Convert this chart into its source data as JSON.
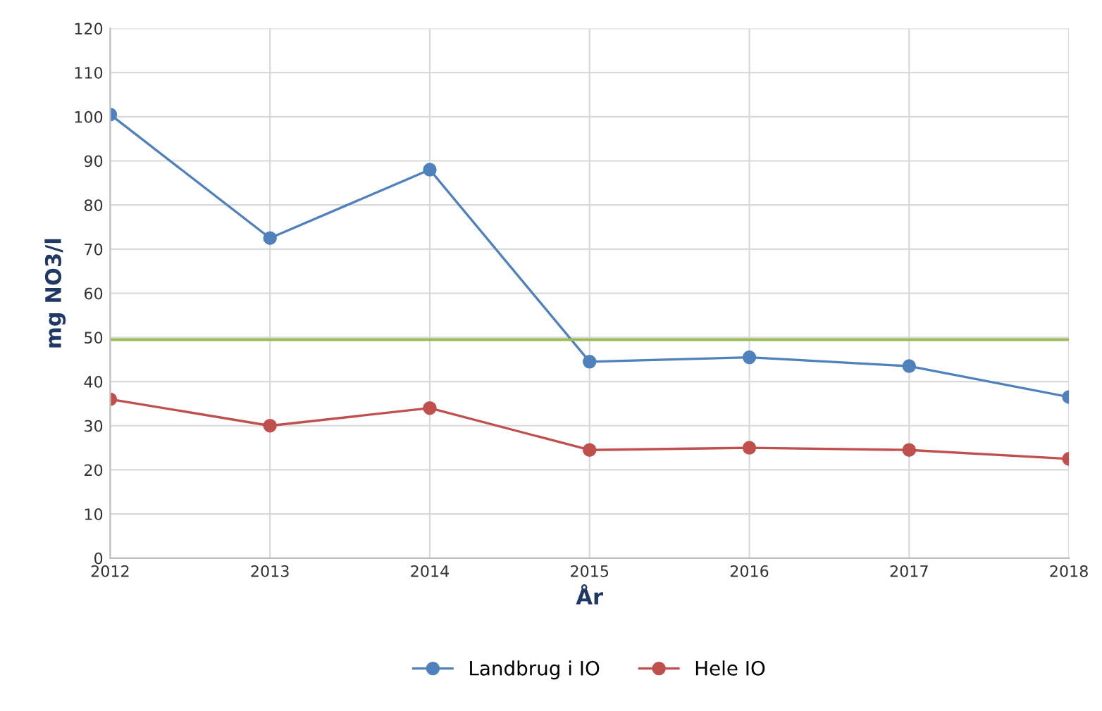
{
  "chart_data": {
    "type": "line",
    "xlabel": "År",
    "ylabel": "mg NO3/l",
    "x": [
      2012,
      2013,
      2014,
      2015,
      2016,
      2017,
      2018
    ],
    "series": [
      {
        "name": "Landbrug i IO",
        "color": "#4f81bd",
        "values": [
          100.5,
          72.5,
          88,
          44.5,
          45.5,
          43.5,
          36.5
        ]
      },
      {
        "name": "Hele IO",
        "color": "#c0504d",
        "values": [
          36,
          30,
          34,
          24.5,
          25,
          24.5,
          22.5
        ]
      }
    ],
    "ref_lines": [
      {
        "axis": "y",
        "value": 49.5,
        "color": "#9bbb59"
      }
    ],
    "xlim": [
      2012,
      2018
    ],
    "xticks": [
      2012,
      2013,
      2014,
      2015,
      2016,
      2017,
      2018
    ],
    "ylim": [
      0,
      120
    ],
    "yticks": [
      0,
      10,
      20,
      30,
      40,
      50,
      60,
      70,
      80,
      90,
      100,
      110,
      120
    ],
    "grid": true,
    "legend": "bottom",
    "marker": "circle",
    "line_style": "solid"
  }
}
